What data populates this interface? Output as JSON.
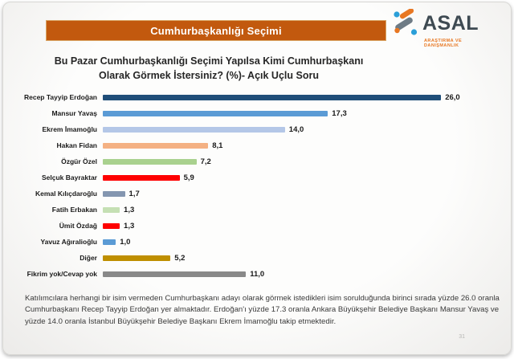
{
  "header": {
    "title": "Cumhurbaşkanlığı Seçimi"
  },
  "logo": {
    "name": "ASAL",
    "tagline": "ARAŞTIRMA VE DANIŞMANLIK"
  },
  "question": {
    "line1": "Bu Pazar Cumhurbaşkanlığı Seçimi Yapılsa Kimi Cumhurbaşkanı",
    "line2": "Olarak Görmek İstersiniz? (%)- Açık Uçlu Soru"
  },
  "chart_data": {
    "type": "bar",
    "orientation": "horizontal",
    "title": "Bu Pazar Cumhurbaşkanlığı Seçimi Yapılsa Kimi Cumhurbaşkanı Olarak Görmek İstersiniz? (%)- Açık Uçlu Soru",
    "unit": "%",
    "categories": [
      "Recep Tayyip Erdoğan",
      "Mansur Yavaş",
      "Ekrem İmamoğlu",
      "Hakan Fidan",
      "Özgür Özel",
      "Selçuk Bayraktar",
      "Kemal Kılıçdaroğlu",
      "Fatih Erbakan",
      "Ümit Özdağ",
      "Yavuz Ağıralioğlu",
      "Diğer",
      "Fikrim yok/Cevap yok"
    ],
    "values": [
      26.0,
      17.3,
      14.0,
      8.1,
      7.2,
      5.9,
      1.7,
      1.3,
      1.3,
      1.0,
      5.2,
      11.0
    ],
    "value_labels": [
      "26,0",
      "17,3",
      "14,0",
      "8,1",
      "7,2",
      "5,9",
      "1,7",
      "1,3",
      "1,3",
      "1,0",
      "5,2",
      "11,0"
    ],
    "bar_colors": [
      "#1F4E79",
      "#5B9BD5",
      "#B4C7E7",
      "#F4B183",
      "#A9D18E",
      "#FE0000",
      "#8496B0",
      "#C5E0B4",
      "#FE0000",
      "#5B9BD5",
      "#BF8F00",
      "#898989"
    ],
    "xlim": [
      0,
      27
    ],
    "grid": false,
    "legend": false,
    "data_labels": true
  },
  "footer": {
    "text": "Katılımcılara herhangi bir isim vermeden Cumhurbaşkanı adayı olarak görmek istedikleri isim sorulduğunda birinci sırada yüzde 26.0 oranla Cumhurbaşkanı Recep Tayyip Erdoğan yer almaktadır. Erdoğan'ı yüzde 17.3 oranla Ankara Büyükşehir Belediye Başkanı Mansur Yavaş ve yüzde 14.0 oranla İstanbul Büyükşehir Belediye Başkanı Ekrem İmamoğlu takip etmektedir."
  },
  "page_number": "31",
  "colors": {
    "header_bg": "#C2590E",
    "logo_text": "#3E4A52",
    "logo_accent_orange": "#E87722",
    "logo_accent_blue": "#2B9FD8",
    "logo_accent_gray": "#6E7B85"
  }
}
